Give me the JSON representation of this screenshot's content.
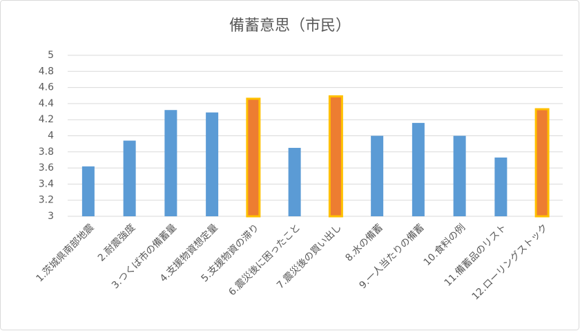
{
  "chart_data": {
    "type": "bar",
    "title": "備蓄意思（市民）",
    "categories": [
      "1.茨城県南部地震",
      "2.耐震強度",
      "3.つくば市の備蓄量",
      "4.支援物資想定量",
      "5.支援物資の滞り",
      "6.震災後に困ったこと",
      "7.震災後の買い出し",
      "8.水の備蓄",
      "9.一人当たりの備蓄",
      "10.食料の例",
      "11.備蓄品のリスト",
      "12.ローリングストック"
    ],
    "values": [
      3.62,
      3.94,
      4.32,
      4.29,
      4.46,
      3.85,
      4.49,
      4.0,
      4.16,
      4.0,
      3.73,
      4.33
    ],
    "colors": [
      "#5b9bd5",
      "#5b9bd5",
      "#5b9bd5",
      "#5b9bd5",
      "#ed7d31",
      "#5b9bd5",
      "#ed7d31",
      "#5b9bd5",
      "#5b9bd5",
      "#5b9bd5",
      "#5b9bd5",
      "#ed7d31"
    ],
    "edgecolors": [
      null,
      null,
      null,
      null,
      "#ffc000",
      null,
      "#ffc000",
      null,
      null,
      null,
      null,
      "#ffc000"
    ],
    "ylim": [
      3,
      5
    ],
    "yticks": [
      3,
      3.2,
      3.4,
      3.6,
      3.8,
      4,
      4.2,
      4.4,
      4.6,
      4.8,
      5
    ],
    "grid": true
  }
}
